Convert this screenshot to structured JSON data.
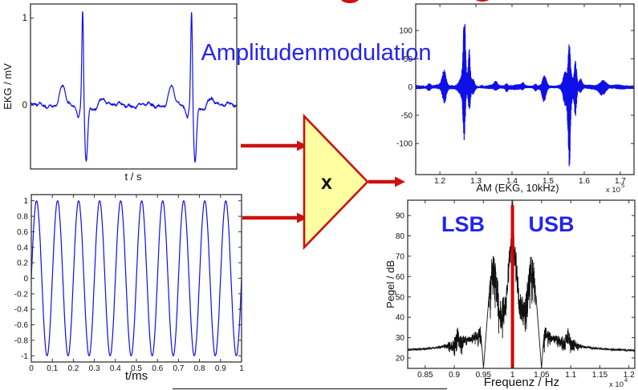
{
  "page": {
    "title": "Amplitudenmodulation",
    "title_color": "#2424ee",
    "background": "#ffffff"
  },
  "multiplier": {
    "label": "x",
    "fill": "#ffffa1",
    "border_color": "#cc1111",
    "label_color": "#111111"
  },
  "arrows": {
    "color": "#cc1111"
  },
  "decor": {
    "top_text_fragment_color": "#cc1111",
    "divider_color": "#333333"
  },
  "chart_data": [
    {
      "id": "ekg",
      "type": "line",
      "title": "",
      "xlabel": "t / s",
      "ylabel": "EKG / mV",
      "line_color": "#0f0fe8",
      "xlim": [
        0,
        1
      ],
      "ylim": [
        -0.73,
        1.16
      ],
      "yticks": {
        "values": [
          1,
          0
        ],
        "labels": [
          "1",
          "0"
        ]
      },
      "xticks": {
        "values": [],
        "labels": []
      },
      "description": "EKG message signal, two heartbeats; R peaks ~1.1 mV at t~0.25 and t~0.78, S dips ~-0.6 mV, P waves ~0.2 mV",
      "signal": {
        "kind": "ekg",
        "beats": [
          0.253,
          0.781
        ],
        "p_amp": 0.21,
        "r_amp": 1.12,
        "s_amp": -0.62
      }
    },
    {
      "id": "carrier",
      "type": "line",
      "title": "",
      "xlabel": "t/ms",
      "ylabel": "",
      "line_color": "#0f0fe8",
      "xlim": [
        0,
        1
      ],
      "ylim": [
        -1.08,
        1.08
      ],
      "yticks": {
        "values": [
          1,
          0.8,
          0.6,
          0.4,
          0.2,
          0,
          -0.2,
          -0.4,
          -0.6,
          -0.8,
          -1
        ],
        "labels": [
          "1",
          "0.8",
          "0.6",
          "0.4",
          "0.2",
          "0",
          "-0.2",
          "-0.4",
          "-0.6",
          "-0.8",
          "-1"
        ]
      },
      "xticks": {
        "values": [
          0,
          0.1,
          0.2,
          0.3,
          0.4,
          0.5,
          0.6,
          0.7,
          0.8,
          0.9,
          1
        ],
        "labels": [
          "0",
          "0.1",
          "0.2",
          "0.3",
          "0.4",
          "0.5",
          "0.6",
          "0.7",
          "0.8",
          "0.9",
          "1"
        ]
      },
      "description": "10 kHz sinusoidal carrier, amplitude 1, 10 cycles per millisecond",
      "signal": {
        "kind": "sine",
        "cycles": 10,
        "amplitude": 1
      }
    },
    {
      "id": "am",
      "type": "line",
      "title": "",
      "xlabel": "AM (EKG, 10kHz)",
      "ylabel": "",
      "x_scale_base": "x 10",
      "x_scale_exp": "5",
      "line_color": "#0f0fe8",
      "xlim": [
        1.133,
        1.738
      ],
      "ylim": [
        -155,
        147
      ],
      "yticks": {
        "values": [
          100,
          50,
          0,
          -50,
          -100
        ],
        "labels": [
          "100",
          "50",
          "0",
          "-50",
          "-100"
        ]
      },
      "xticks": {
        "values": [
          1.2,
          1.3,
          1.4,
          1.5,
          1.6,
          1.7
        ],
        "labels": [
          "1.2",
          "1.3",
          "1.4",
          "1.5",
          "1.6",
          "1.7"
        ]
      },
      "description": "Amplitude-modulated EKG on 10 kHz carrier; large bursts ~140 at sample ~1.27e5 and ~1.56e5, small bursts ~30 at 1.21e5 and 1.49e5",
      "signal": {
        "kind": "am",
        "base": 3.2,
        "bursts": [
          [
            1.17,
            0.004,
            6
          ],
          [
            1.212,
            0.005,
            30
          ],
          [
            1.2675,
            0.0028,
            118
          ],
          [
            1.2675,
            0.01,
            24
          ],
          [
            1.2815,
            0.0025,
            56
          ],
          [
            1.292,
            0.004,
            12
          ],
          [
            1.355,
            0.004,
            8
          ],
          [
            1.385,
            0.003,
            6
          ],
          [
            1.43,
            0.003,
            5
          ],
          [
            1.465,
            0.003,
            5
          ],
          [
            1.489,
            0.005,
            25
          ],
          [
            1.5465,
            0.004,
            20
          ],
          [
            1.5585,
            0.0028,
            115
          ],
          [
            1.5585,
            0.01,
            28
          ],
          [
            1.576,
            0.0028,
            50
          ],
          [
            1.59,
            0.004,
            12
          ],
          [
            1.651,
            0.009,
            14
          ]
        ]
      }
    },
    {
      "id": "spectrum",
      "type": "line",
      "title": "",
      "xlabel": "Frequenz / Hz",
      "ylabel": "Pegel / dB",
      "x_scale_base": "x 10",
      "x_scale_exp": "4",
      "line_color": "#111111",
      "xlim": [
        0.82,
        1.21
      ],
      "ylim": [
        14.9,
        97.5
      ],
      "yticks": {
        "values": [
          90,
          80,
          70,
          60,
          50,
          40,
          30,
          20
        ],
        "labels": [
          "90",
          "80",
          "70",
          "60",
          "50",
          "40",
          "30",
          "20"
        ]
      },
      "xticks": {
        "values": [
          0.85,
          0.9,
          0.95,
          1,
          1.05,
          1.1,
          1.15,
          1.2
        ],
        "labels": [
          "0.85",
          "0.9",
          "0.95",
          "1",
          "1.05",
          "1.1",
          "1.15",
          "1.2"
        ]
      },
      "annotations": {
        "lsb": "LSB",
        "usb": "USB",
        "color": "#2424ee"
      },
      "carrier_line": {
        "freq": 1.0,
        "color": "#dd0000",
        "top_db": 95
      },
      "description": "AM spectrum: carrier peak ~95 dB at 1e4 Hz (red line), sideband humps ~62 dB at 0.966e4 and 1.034e4, notches at 0.95e4 / 1.05e4, noise floor ~25 dB",
      "signal": {
        "kind": "spectrum",
        "carrier_peak_db": 95,
        "plateau_db": 78,
        "sideband_peak_db": 63,
        "sideband_centers": [
          0.9665,
          1.0335
        ],
        "shoulder_centers": [
          0.9055,
          1.0945
        ],
        "shoulder_db": 31,
        "floor_db": 23.5,
        "notches": [
          0.9502,
          1.0498
        ]
      }
    }
  ]
}
